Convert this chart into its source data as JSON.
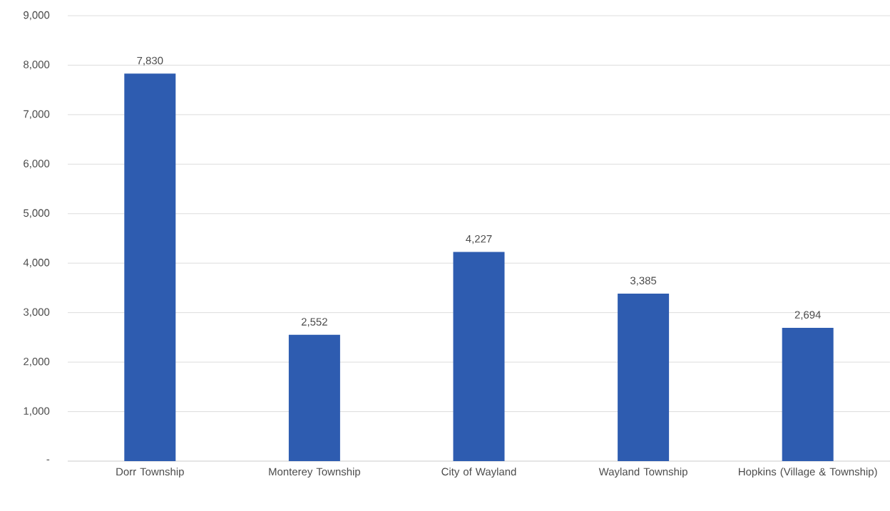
{
  "chart_data": {
    "type": "bar",
    "categories": [
      "Dorr Township",
      "Monterey Township",
      "City of Wayland",
      "Wayland Township",
      "Hopkins (Village & Township)"
    ],
    "values": [
      7830,
      2552,
      4227,
      3385,
      2694
    ],
    "value_labels": [
      "7,830",
      "2,552",
      "4,227",
      "3,385",
      "2,694"
    ],
    "color": "#2e5cb0",
    "ylim": [
      0,
      9000
    ],
    "yticks": [
      {
        "value": 0,
        "label": "-"
      },
      {
        "value": 1000,
        "label": "1,000"
      },
      {
        "value": 2000,
        "label": "2,000"
      },
      {
        "value": 3000,
        "label": "3,000"
      },
      {
        "value": 4000,
        "label": "4,000"
      },
      {
        "value": 5000,
        "label": "5,000"
      },
      {
        "value": 6000,
        "label": "6,000"
      },
      {
        "value": 7000,
        "label": "7,000"
      },
      {
        "value": 8000,
        "label": "8,000"
      },
      {
        "value": 9000,
        "label": "9,000"
      }
    ],
    "grid": "y"
  }
}
